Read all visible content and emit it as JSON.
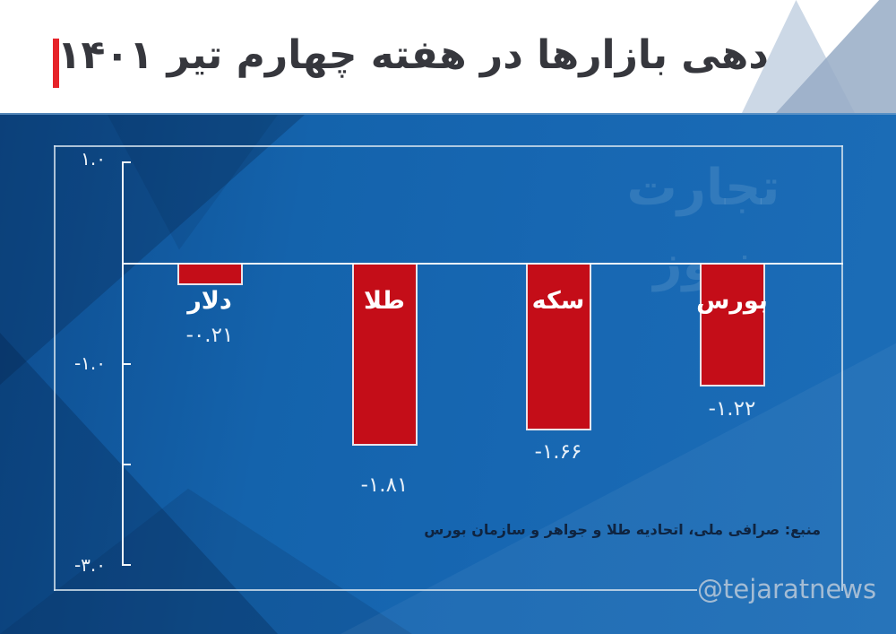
{
  "header": {
    "title": "بازدهی بازارها در هفته چهارم تیر ۱۴۰۱"
  },
  "watermark": "تجارت نیوز",
  "source": "منبع: صرافی ملی، اتحادیه طلا و جواهر و سازمان بورس",
  "handle": "@tejaratnews",
  "colors": {
    "accent_red": "#e62329",
    "bar_red": "#c40d18",
    "panel_blue": "#1565ae",
    "title_text": "#36373d",
    "axis_white": "#f4f8fb",
    "source_text": "#0f2440",
    "handle_text": "#a4bcd4"
  },
  "chart_data": {
    "type": "bar",
    "title": "بازدهی بازارها در هفته چهارم تیر ۱۴۰۱",
    "categories": [
      "دلار",
      "طلا",
      "سکه",
      "بورس"
    ],
    "categories_order": "visual left-to-right (chart reads right-to-left)",
    "values": [
      -0.21,
      -1.81,
      -1.66,
      -1.22
    ],
    "value_labels": [
      "-۰.۲۱",
      "-۱.۸۱",
      "-۱.۶۶",
      "-۱.۲۲"
    ],
    "ylim": [
      -3.0,
      1.0
    ],
    "y_ticks": [
      {
        "value": 1.0,
        "label": "۱.۰"
      },
      {
        "value": -1.0,
        "label": "-۱.۰"
      },
      {
        "value": -2.0,
        "label": ""
      },
      {
        "value": -3.0,
        "label": "-۳.۰"
      }
    ],
    "bar_color": "#c40d18",
    "grid": false,
    "legend": false
  }
}
